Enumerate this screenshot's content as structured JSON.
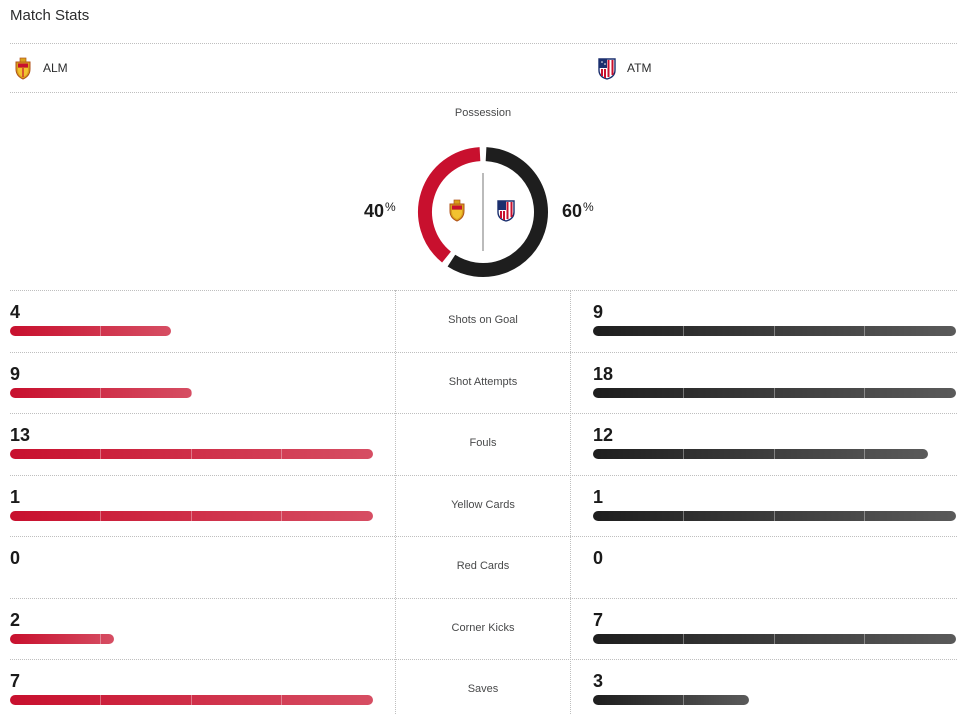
{
  "header": {
    "title": "Match Stats"
  },
  "teams": {
    "home": {
      "abbr": "ALM",
      "color": "#c8102e"
    },
    "away": {
      "abbr": "ATM",
      "color": "#1e1e1e"
    }
  },
  "possession": {
    "label": "Possession",
    "home_pct": 40,
    "away_pct": 60,
    "home_display": "40",
    "away_display": "60",
    "unit": "%"
  },
  "stats": [
    {
      "label": "Shots on Goal",
      "home": "4",
      "away": "9",
      "home_fill": 0.444,
      "away_fill": 1.0
    },
    {
      "label": "Shot Attempts",
      "home": "9",
      "away": "18",
      "home_fill": 0.5,
      "away_fill": 1.0
    },
    {
      "label": "Fouls",
      "home": "13",
      "away": "12",
      "home_fill": 1.0,
      "away_fill": 0.923
    },
    {
      "label": "Yellow Cards",
      "home": "1",
      "away": "1",
      "home_fill": 1.0,
      "away_fill": 1.0
    },
    {
      "label": "Red Cards",
      "home": "0",
      "away": "0",
      "home_fill": 0,
      "away_fill": 0
    },
    {
      "label": "Corner Kicks",
      "home": "2",
      "away": "7",
      "home_fill": 0.286,
      "away_fill": 1.0
    },
    {
      "label": "Saves",
      "home": "7",
      "away": "3",
      "home_fill": 1.0,
      "away_fill": 0.429
    }
  ]
}
